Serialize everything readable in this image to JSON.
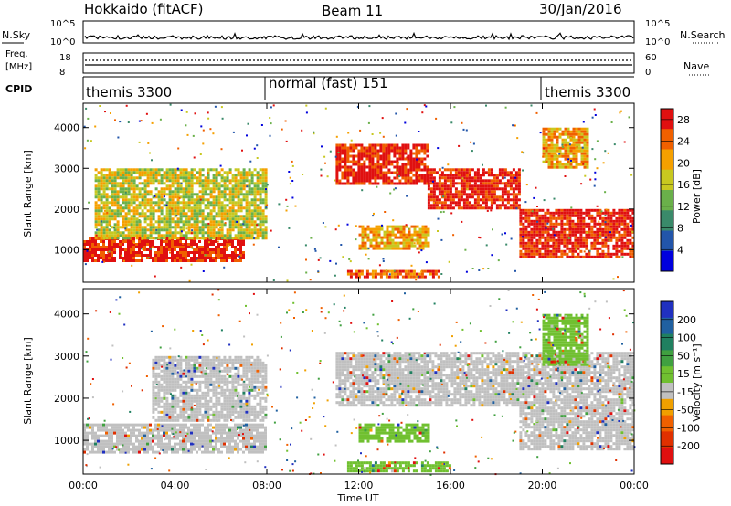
{
  "header": {
    "station": "Hokkaido (fitACF)",
    "beam": "Beam 11",
    "date": "30/Jan/2016"
  },
  "top_panels": {
    "nsky_label": "N.Sky",
    "nsky_ticks": [
      "10^5",
      "10^0"
    ],
    "nsearch_label": "N.Search",
    "nsearch_ticks": [
      "10^5",
      "10^0"
    ],
    "freq_label_line1": "Freq.",
    "freq_label_line2": "[MHz]",
    "freq_ticks": [
      "18",
      "8"
    ],
    "nave_label": "Nave",
    "nave_ticks": [
      "60",
      "0"
    ],
    "cpid_label": "CPID",
    "cpid_modes": [
      {
        "label": "themis 3300",
        "start_hour": 0
      },
      {
        "label": "normal (fast) 151",
        "start_hour": 8
      },
      {
        "label": "themis 3300",
        "start_hour": 20
      }
    ]
  },
  "chart_data": [
    {
      "type": "heatmap",
      "name": "power",
      "ylabel": "Slant Range [km]",
      "yticks": [
        1000,
        2000,
        3000,
        4000
      ],
      "ylim": [
        200,
        4600
      ],
      "xlim": [
        0,
        24
      ],
      "colorbar": {
        "label": "Power [dB]",
        "ticks": [
          4,
          8,
          12,
          16,
          20,
          24,
          28
        ],
        "range": [
          0,
          30
        ],
        "colors": [
          "#0000dd",
          "#2255aa",
          "#3a8a6a",
          "#6ab04a",
          "#c8c820",
          "#f5a000",
          "#f06000",
          "#e01010"
        ]
      },
      "regions": [
        {
          "x": [
            0.0,
            7.0
          ],
          "y": [
            700,
            1300
          ],
          "level": 28
        },
        {
          "x": [
            0.5,
            8.0
          ],
          "y": [
            1300,
            3000
          ],
          "level": 16
        },
        {
          "x": [
            11.0,
            15.0
          ],
          "y": [
            2600,
            3600
          ],
          "level": 28
        },
        {
          "x": [
            15.0,
            19.0
          ],
          "y": [
            2000,
            3000
          ],
          "level": 28
        },
        {
          "x": [
            19.0,
            24.0
          ],
          "y": [
            800,
            2000
          ],
          "level": 28
        },
        {
          "x": [
            20.0,
            22.0
          ],
          "y": [
            3000,
            4000
          ],
          "level": 20
        },
        {
          "x": [
            11.5,
            15.5
          ],
          "y": [
            300,
            500
          ],
          "level": 24
        },
        {
          "x": [
            12.0,
            15.0
          ],
          "y": [
            1000,
            1600
          ],
          "level": 20
        }
      ]
    },
    {
      "type": "heatmap",
      "name": "velocity",
      "ylabel": "Slant Range [km]",
      "xlabel": "Time UT",
      "yticks": [
        1000,
        2000,
        3000,
        4000
      ],
      "ylim": [
        200,
        4600
      ],
      "xlim": [
        0,
        24
      ],
      "xticks": [
        "00:00",
        "04:00",
        "08:00",
        "12:00",
        "16:00",
        "20:00",
        "00:00"
      ],
      "colorbar": {
        "label": "Velocity [m s⁻¹]",
        "ticks": [
          200,
          100,
          50,
          15,
          -15,
          -50,
          -100,
          -200
        ],
        "colors": [
          "#2030c0",
          "#2060a0",
          "#208060",
          "#40a040",
          "#70c030",
          "#c0c0c0",
          "#f0a000",
          "#f06000",
          "#e03000",
          "#e01010"
        ]
      },
      "regions": [
        {
          "x": [
            0.0,
            8.0
          ],
          "y": [
            700,
            1400
          ],
          "level": 0
        },
        {
          "x": [
            3.0,
            8.0
          ],
          "y": [
            1500,
            3000
          ],
          "level": 0
        },
        {
          "x": [
            11.0,
            24.0
          ],
          "y": [
            1800,
            3100
          ],
          "level": 0
        },
        {
          "x": [
            19.0,
            24.0
          ],
          "y": [
            800,
            1800
          ],
          "level": 0
        },
        {
          "x": [
            20.0,
            22.0
          ],
          "y": [
            2800,
            4000
          ],
          "level": 30
        },
        {
          "x": [
            12.0,
            15.0
          ],
          "y": [
            1000,
            1400
          ],
          "level": 30
        },
        {
          "x": [
            11.5,
            16.0
          ],
          "y": [
            300,
            500
          ],
          "level": 30
        }
      ]
    }
  ]
}
